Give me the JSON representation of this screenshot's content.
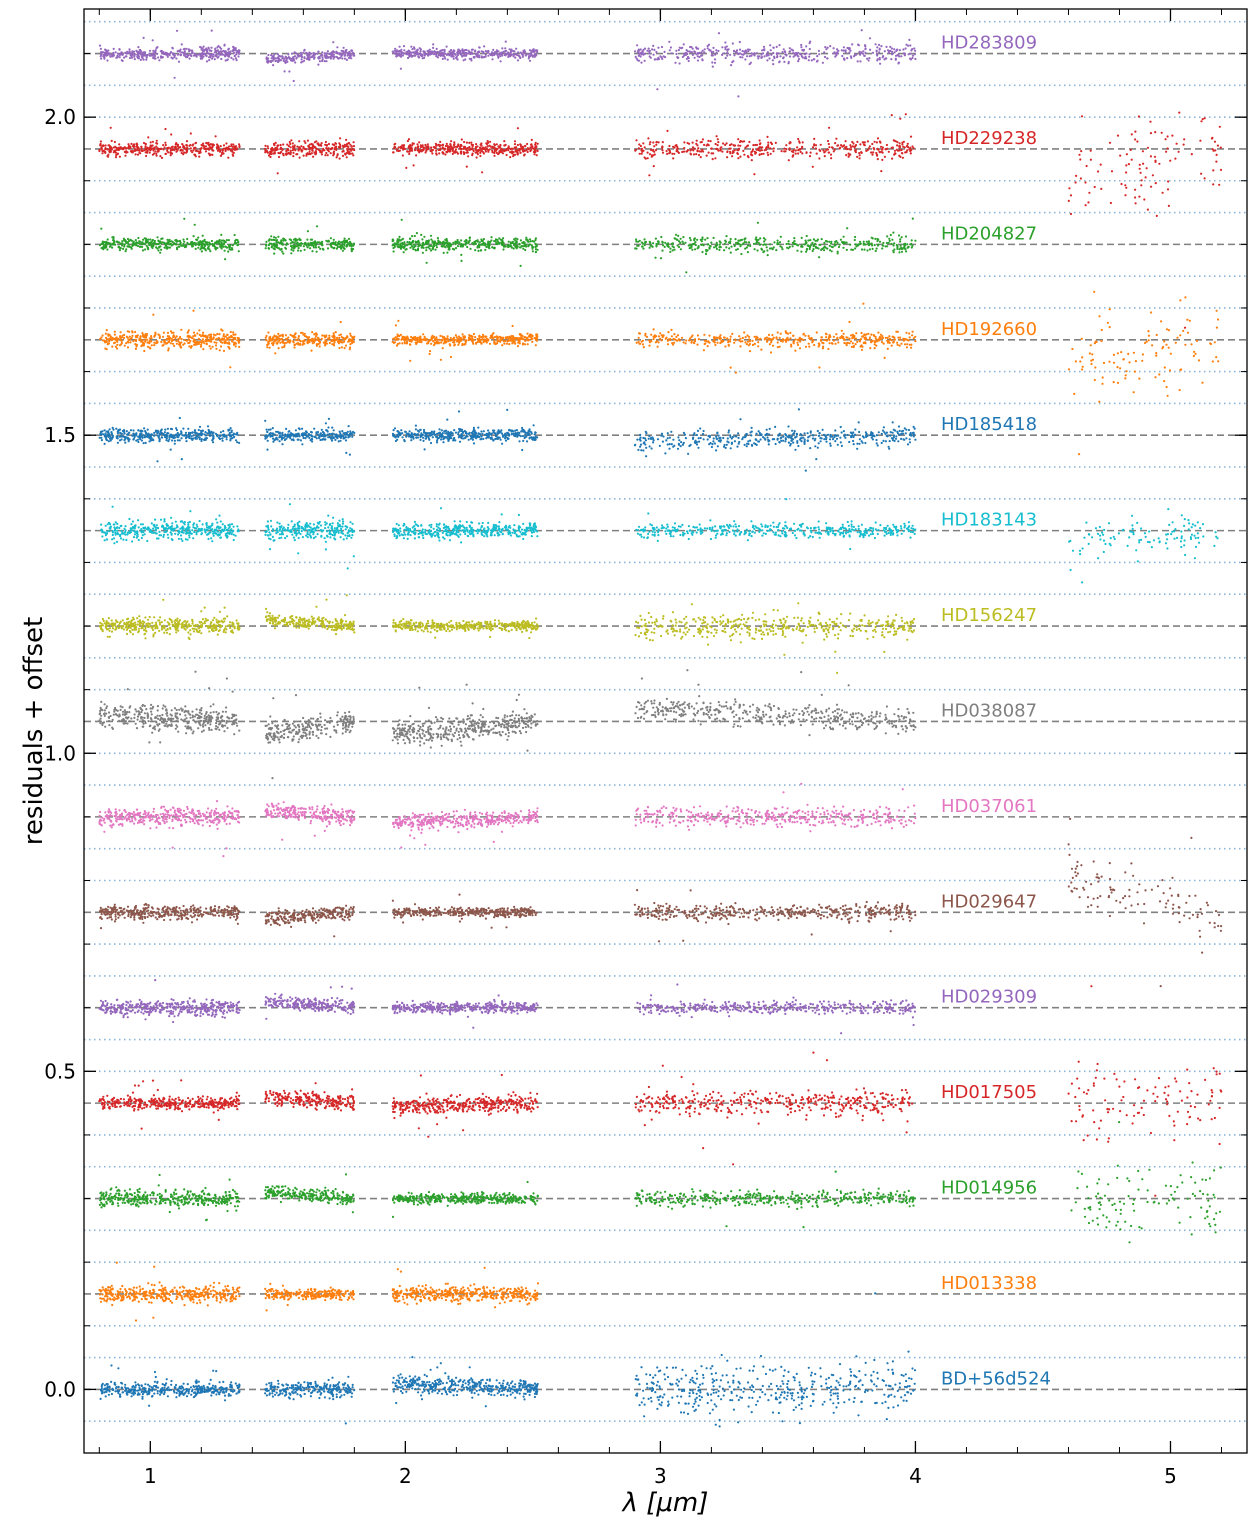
{
  "chart_data": {
    "type": "scatter",
    "title": "",
    "xlabel": "λ [μm]",
    "ylabel": "residuals + offset",
    "xlim": [
      0.74,
      5.3
    ],
    "ylim": [
      -0.1,
      2.17
    ],
    "xticks": [
      1,
      2,
      3,
      4,
      5
    ],
    "xtick_labels": [
      "1",
      "2",
      "3",
      "4",
      "5"
    ],
    "yticks": [
      0.0,
      0.5,
      1.0,
      1.5,
      2.0
    ],
    "ytick_labels": [
      "0.0",
      "0.5",
      "1.0",
      "1.5",
      "2.0"
    ],
    "segments": [
      [
        0.8,
        1.35
      ],
      [
        1.45,
        1.8
      ],
      [
        1.95,
        2.52
      ],
      [
        2.9,
        4.0
      ],
      [
        4.6,
        5.2
      ]
    ],
    "series": [
      {
        "name": "BD+56d524",
        "offset": 0.0,
        "color": "#1f77b4",
        "scatter": [
          0.012,
          0.012,
          0.013,
          0.04,
          0.0
        ],
        "trend": [
          0.0,
          0.0,
          0.01,
          0.0,
          0.0
        ]
      },
      {
        "name": "HD013338",
        "offset": 0.15,
        "color": "#ff7f0e",
        "scatter": [
          0.012,
          0.009,
          0.012,
          0.0,
          0.0
        ],
        "trend": [
          0.0,
          0.0,
          0.0,
          0.0,
          0.0
        ]
      },
      {
        "name": "HD014956",
        "offset": 0.3,
        "color": "#2ca02c",
        "scatter": [
          0.012,
          0.01,
          0.008,
          0.012,
          0.06
        ],
        "trend": [
          0.0,
          0.01,
          0.0,
          0.0,
          0.0
        ]
      },
      {
        "name": "HD017505",
        "offset": 0.45,
        "color": "#d62728",
        "scatter": [
          0.01,
          0.012,
          0.012,
          0.02,
          0.06
        ],
        "trend": [
          0.0,
          0.01,
          -0.005,
          0.0,
          0.0
        ]
      },
      {
        "name": "HD029309",
        "offset": 0.6,
        "color": "#9467bd",
        "scatter": [
          0.012,
          0.01,
          0.008,
          0.01,
          0.0
        ],
        "trend": [
          0.0,
          0.01,
          0.0,
          0.0,
          0.0
        ]
      },
      {
        "name": "HD029647",
        "offset": 0.75,
        "color": "#8c564b",
        "scatter": [
          0.01,
          0.01,
          0.007,
          0.012,
          0.04
        ],
        "trend": [
          0.0,
          -0.01,
          0.0,
          0.0,
          0.05
        ]
      },
      {
        "name": "HD037061",
        "offset": 0.9,
        "color": "#e377c2",
        "scatter": [
          0.014,
          0.012,
          0.012,
          0.015,
          0.0
        ],
        "trend": [
          0.0,
          0.01,
          -0.01,
          0.0,
          0.0
        ]
      },
      {
        "name": "HD038087",
        "offset": 1.05,
        "color": "#7f7f7f",
        "scatter": [
          0.018,
          0.018,
          0.018,
          0.018,
          0.0
        ],
        "trend": [
          0.01,
          -0.02,
          -0.02,
          0.02,
          0.0
        ]
      },
      {
        "name": "HD156247",
        "offset": 1.2,
        "color": "#bcbd22",
        "scatter": [
          0.012,
          0.01,
          0.008,
          0.02,
          0.0
        ],
        "trend": [
          0.0,
          0.01,
          0.0,
          0.0,
          0.0
        ]
      },
      {
        "name": "HD183143",
        "offset": 1.35,
        "color": "#17becf",
        "scatter": [
          0.014,
          0.014,
          0.012,
          0.012,
          0.03
        ],
        "trend": [
          0.0,
          0.0,
          0.0,
          0.0,
          -0.02
        ]
      },
      {
        "name": "HD185418",
        "offset": 1.5,
        "color": "#1f77b4",
        "scatter": [
          0.01,
          0.01,
          0.01,
          0.015,
          0.0
        ],
        "trend": [
          0.0,
          0.0,
          0.0,
          -0.01,
          0.0
        ]
      },
      {
        "name": "HD192660",
        "offset": 1.65,
        "color": "#ff7f0e",
        "scatter": [
          0.012,
          0.01,
          0.008,
          0.012,
          0.06
        ],
        "trend": [
          0.0,
          0.0,
          0.0,
          0.0,
          -0.03
        ]
      },
      {
        "name": "HD204827",
        "offset": 1.8,
        "color": "#2ca02c",
        "scatter": [
          0.01,
          0.01,
          0.01,
          0.012,
          0.0
        ],
        "trend": [
          0.0,
          0.0,
          0.0,
          0.0,
          0.0
        ]
      },
      {
        "name": "HD229238",
        "offset": 1.95,
        "color": "#d62728",
        "scatter": [
          0.01,
          0.012,
          0.01,
          0.015,
          0.07
        ],
        "trend": [
          0.0,
          0.0,
          0.0,
          0.0,
          -0.05
        ]
      },
      {
        "name": "HD283809",
        "offset": 2.1,
        "color": "#9467bd",
        "scatter": [
          0.01,
          0.008,
          0.008,
          0.015,
          0.0
        ],
        "trend": [
          0.0,
          -0.01,
          0.0,
          0.0,
          0.0
        ]
      }
    ],
    "dashed_line_color": "#808080",
    "dotted_line_color": "#8ab4d9",
    "grid": false,
    "legend": "none"
  }
}
